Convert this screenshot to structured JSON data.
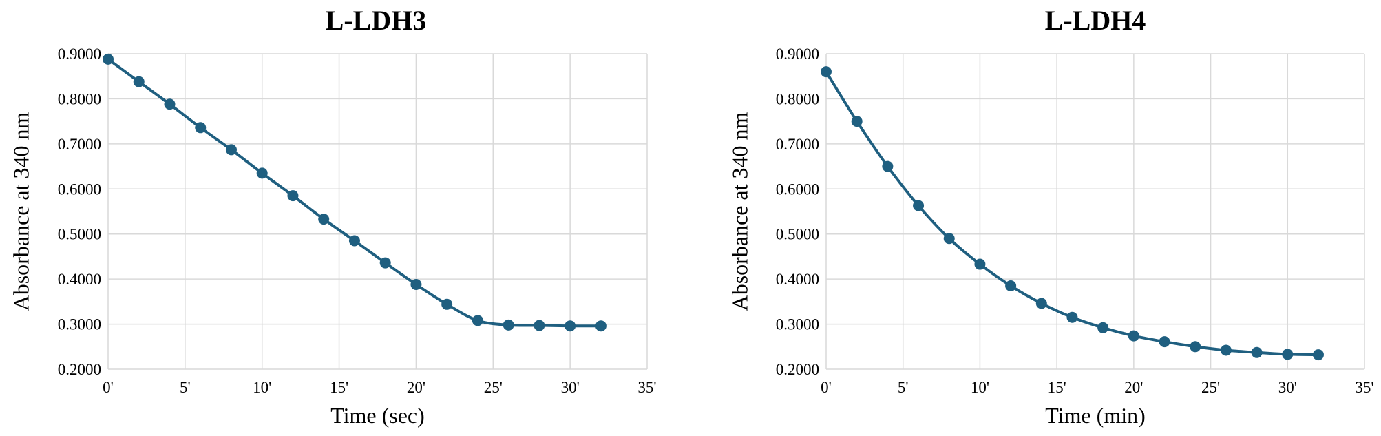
{
  "chart_data": [
    {
      "type": "line",
      "title": "L-LDH3",
      "xlabel": "Time (sec)",
      "ylabel": "Absorbance at 340 nm",
      "x_tick_labels": [
        "0'",
        "5'",
        "10'",
        "15'",
        "20'",
        "25'",
        "30'",
        "35'"
      ],
      "y_tick_labels": [
        "0.2000",
        "0.3000",
        "0.4000",
        "0.5000",
        "0.6000",
        "0.7000",
        "0.8000",
        "0.9000"
      ],
      "xlim": [
        0,
        35
      ],
      "ylim": [
        0.2,
        0.9
      ],
      "grid": true,
      "color": "#1f5f80",
      "series": [
        {
          "x": [
            0,
            2,
            4,
            6,
            8,
            10,
            12,
            14,
            16,
            18,
            20,
            22,
            24,
            26,
            28,
            30,
            32
          ],
          "y": [
            0.888,
            0.838,
            0.788,
            0.736,
            0.687,
            0.635,
            0.585,
            0.533,
            0.485,
            0.436,
            0.388,
            0.344,
            0.308,
            0.298,
            0.297,
            0.296,
            0.296
          ]
        }
      ]
    },
    {
      "type": "line",
      "title": "L-LDH4",
      "xlabel": "Time (min)",
      "ylabel": "Absorbance at 340 nm",
      "x_tick_labels": [
        "0'",
        "5'",
        "10'",
        "15'",
        "20'",
        "25'",
        "30'",
        "35'"
      ],
      "y_tick_labels": [
        "0.2000",
        "0.3000",
        "0.4000",
        "0.5000",
        "0.6000",
        "0.7000",
        "0.8000",
        "0.9000"
      ],
      "xlim": [
        0,
        35
      ],
      "ylim": [
        0.2,
        0.9
      ],
      "grid": true,
      "color": "#1f5f80",
      "series": [
        {
          "x": [
            0,
            2,
            4,
            6,
            8,
            10,
            12,
            14,
            16,
            18,
            20,
            22,
            24,
            26,
            28,
            30,
            32
          ],
          "y": [
            0.86,
            0.75,
            0.65,
            0.563,
            0.49,
            0.433,
            0.385,
            0.346,
            0.315,
            0.292,
            0.274,
            0.261,
            0.25,
            0.242,
            0.237,
            0.233,
            0.232
          ]
        }
      ]
    }
  ]
}
